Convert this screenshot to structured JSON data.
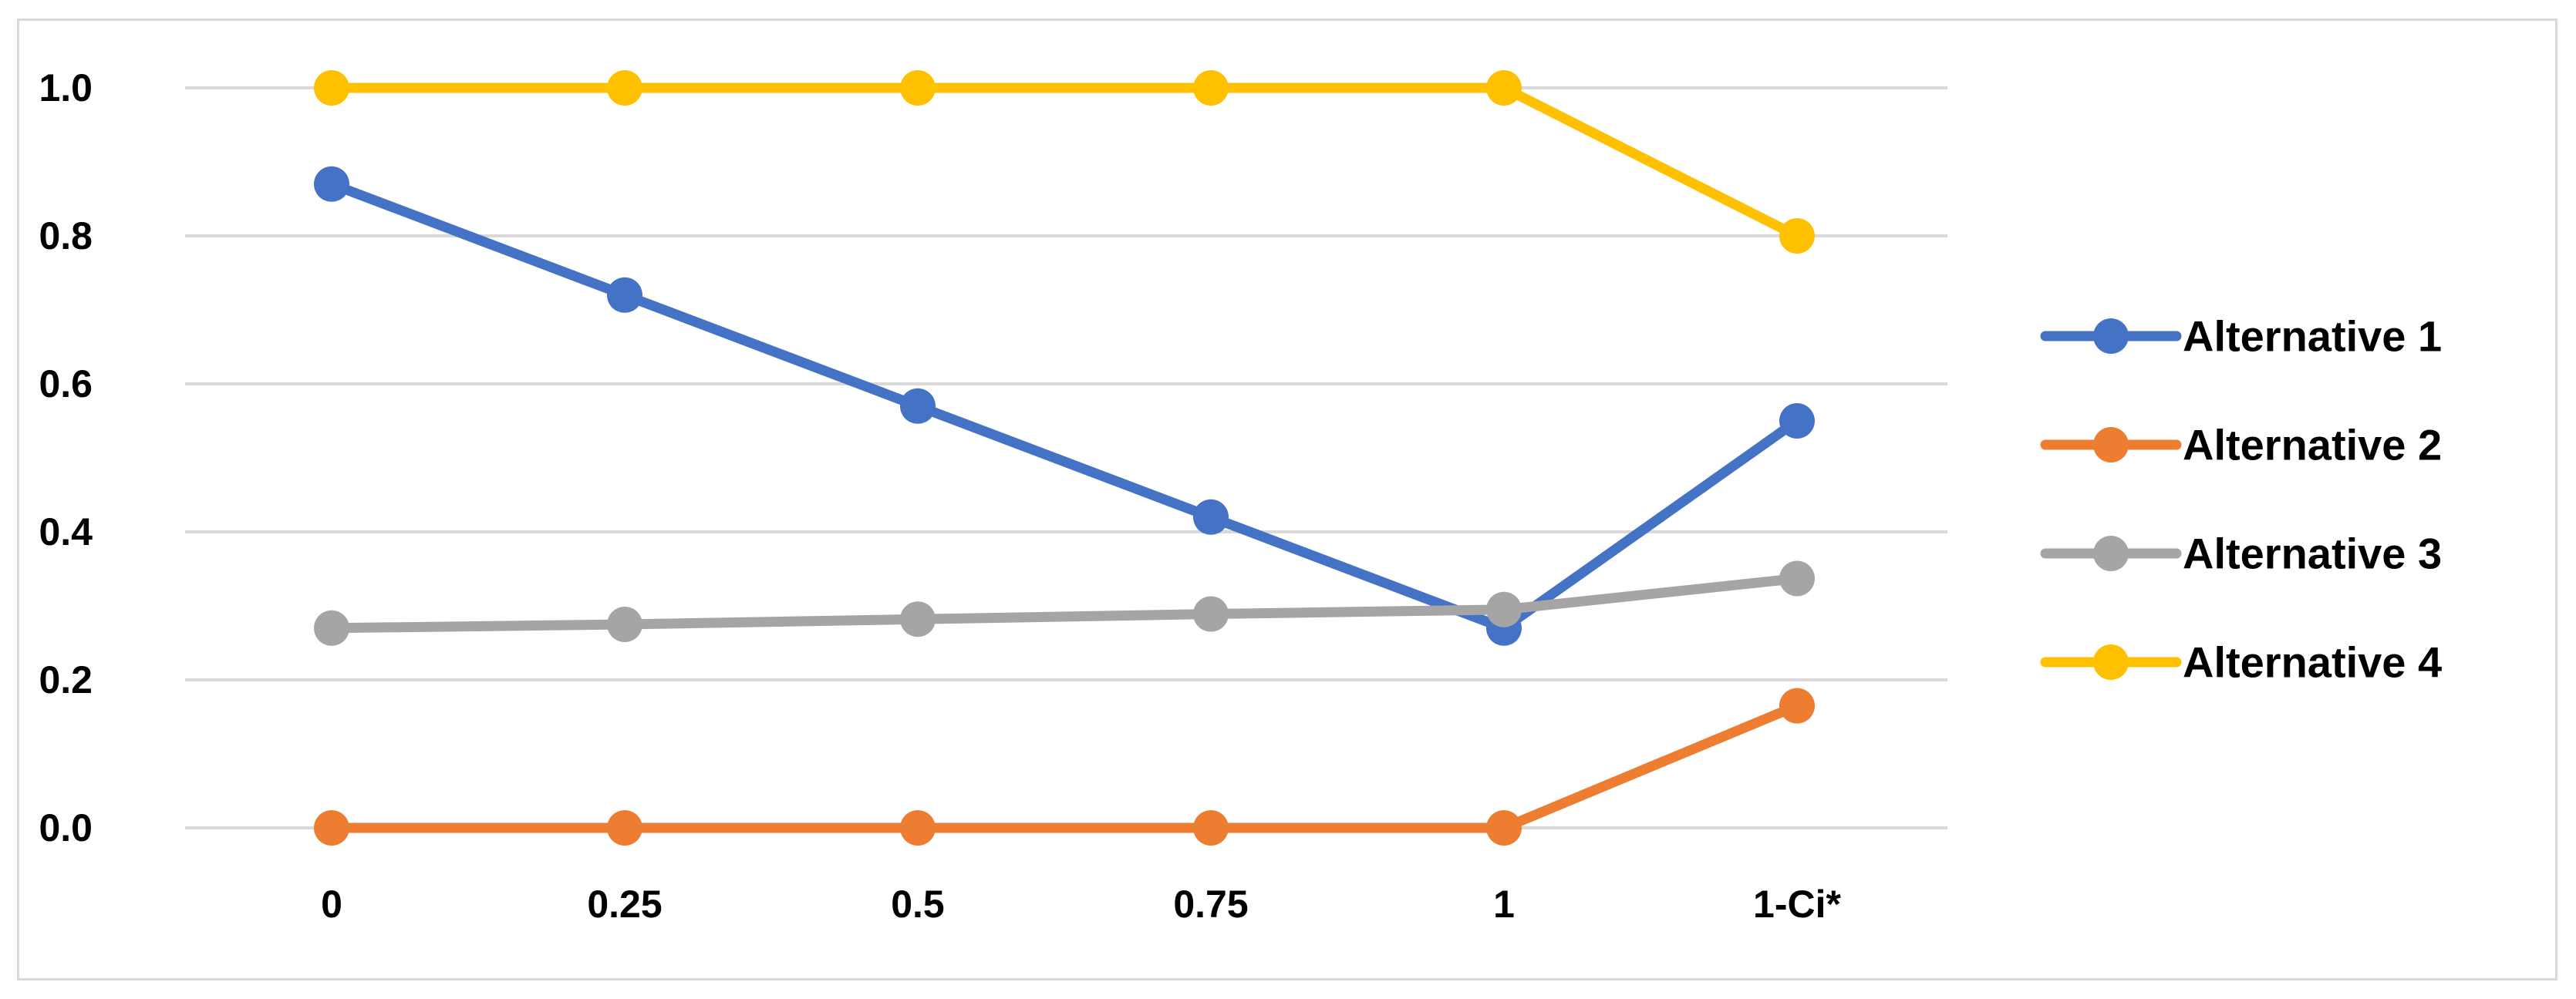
{
  "chart_data": {
    "type": "line",
    "title": "",
    "xlabel": "",
    "ylabel": "",
    "categories": [
      "0",
      "0.25",
      "0.5",
      "0.75",
      "1",
      "1-Ci*"
    ],
    "y_ticks": [
      "0.0",
      "0.2",
      "0.4",
      "0.6",
      "0.8",
      "1.0"
    ],
    "ylim": [
      0,
      1
    ],
    "grid": true,
    "legend_position": "right",
    "series": [
      {
        "name": "Alternative 1",
        "color": "#4472C4",
        "values": [
          0.87,
          0.72,
          0.57,
          0.42,
          0.27,
          0.55
        ]
      },
      {
        "name": "Alternative 2",
        "color": "#ED7D31",
        "values": [
          0.0,
          0.0,
          0.0,
          0.0,
          0.0,
          0.165
        ]
      },
      {
        "name": "Alternative 3",
        "color": "#A5A5A5",
        "values": [
          0.27,
          0.275,
          0.282,
          0.289,
          0.295,
          0.337
        ]
      },
      {
        "name": "Alternative 4",
        "color": "#FFC000",
        "values": [
          1.0,
          1.0,
          1.0,
          1.0,
          1.0,
          0.8
        ]
      }
    ]
  }
}
